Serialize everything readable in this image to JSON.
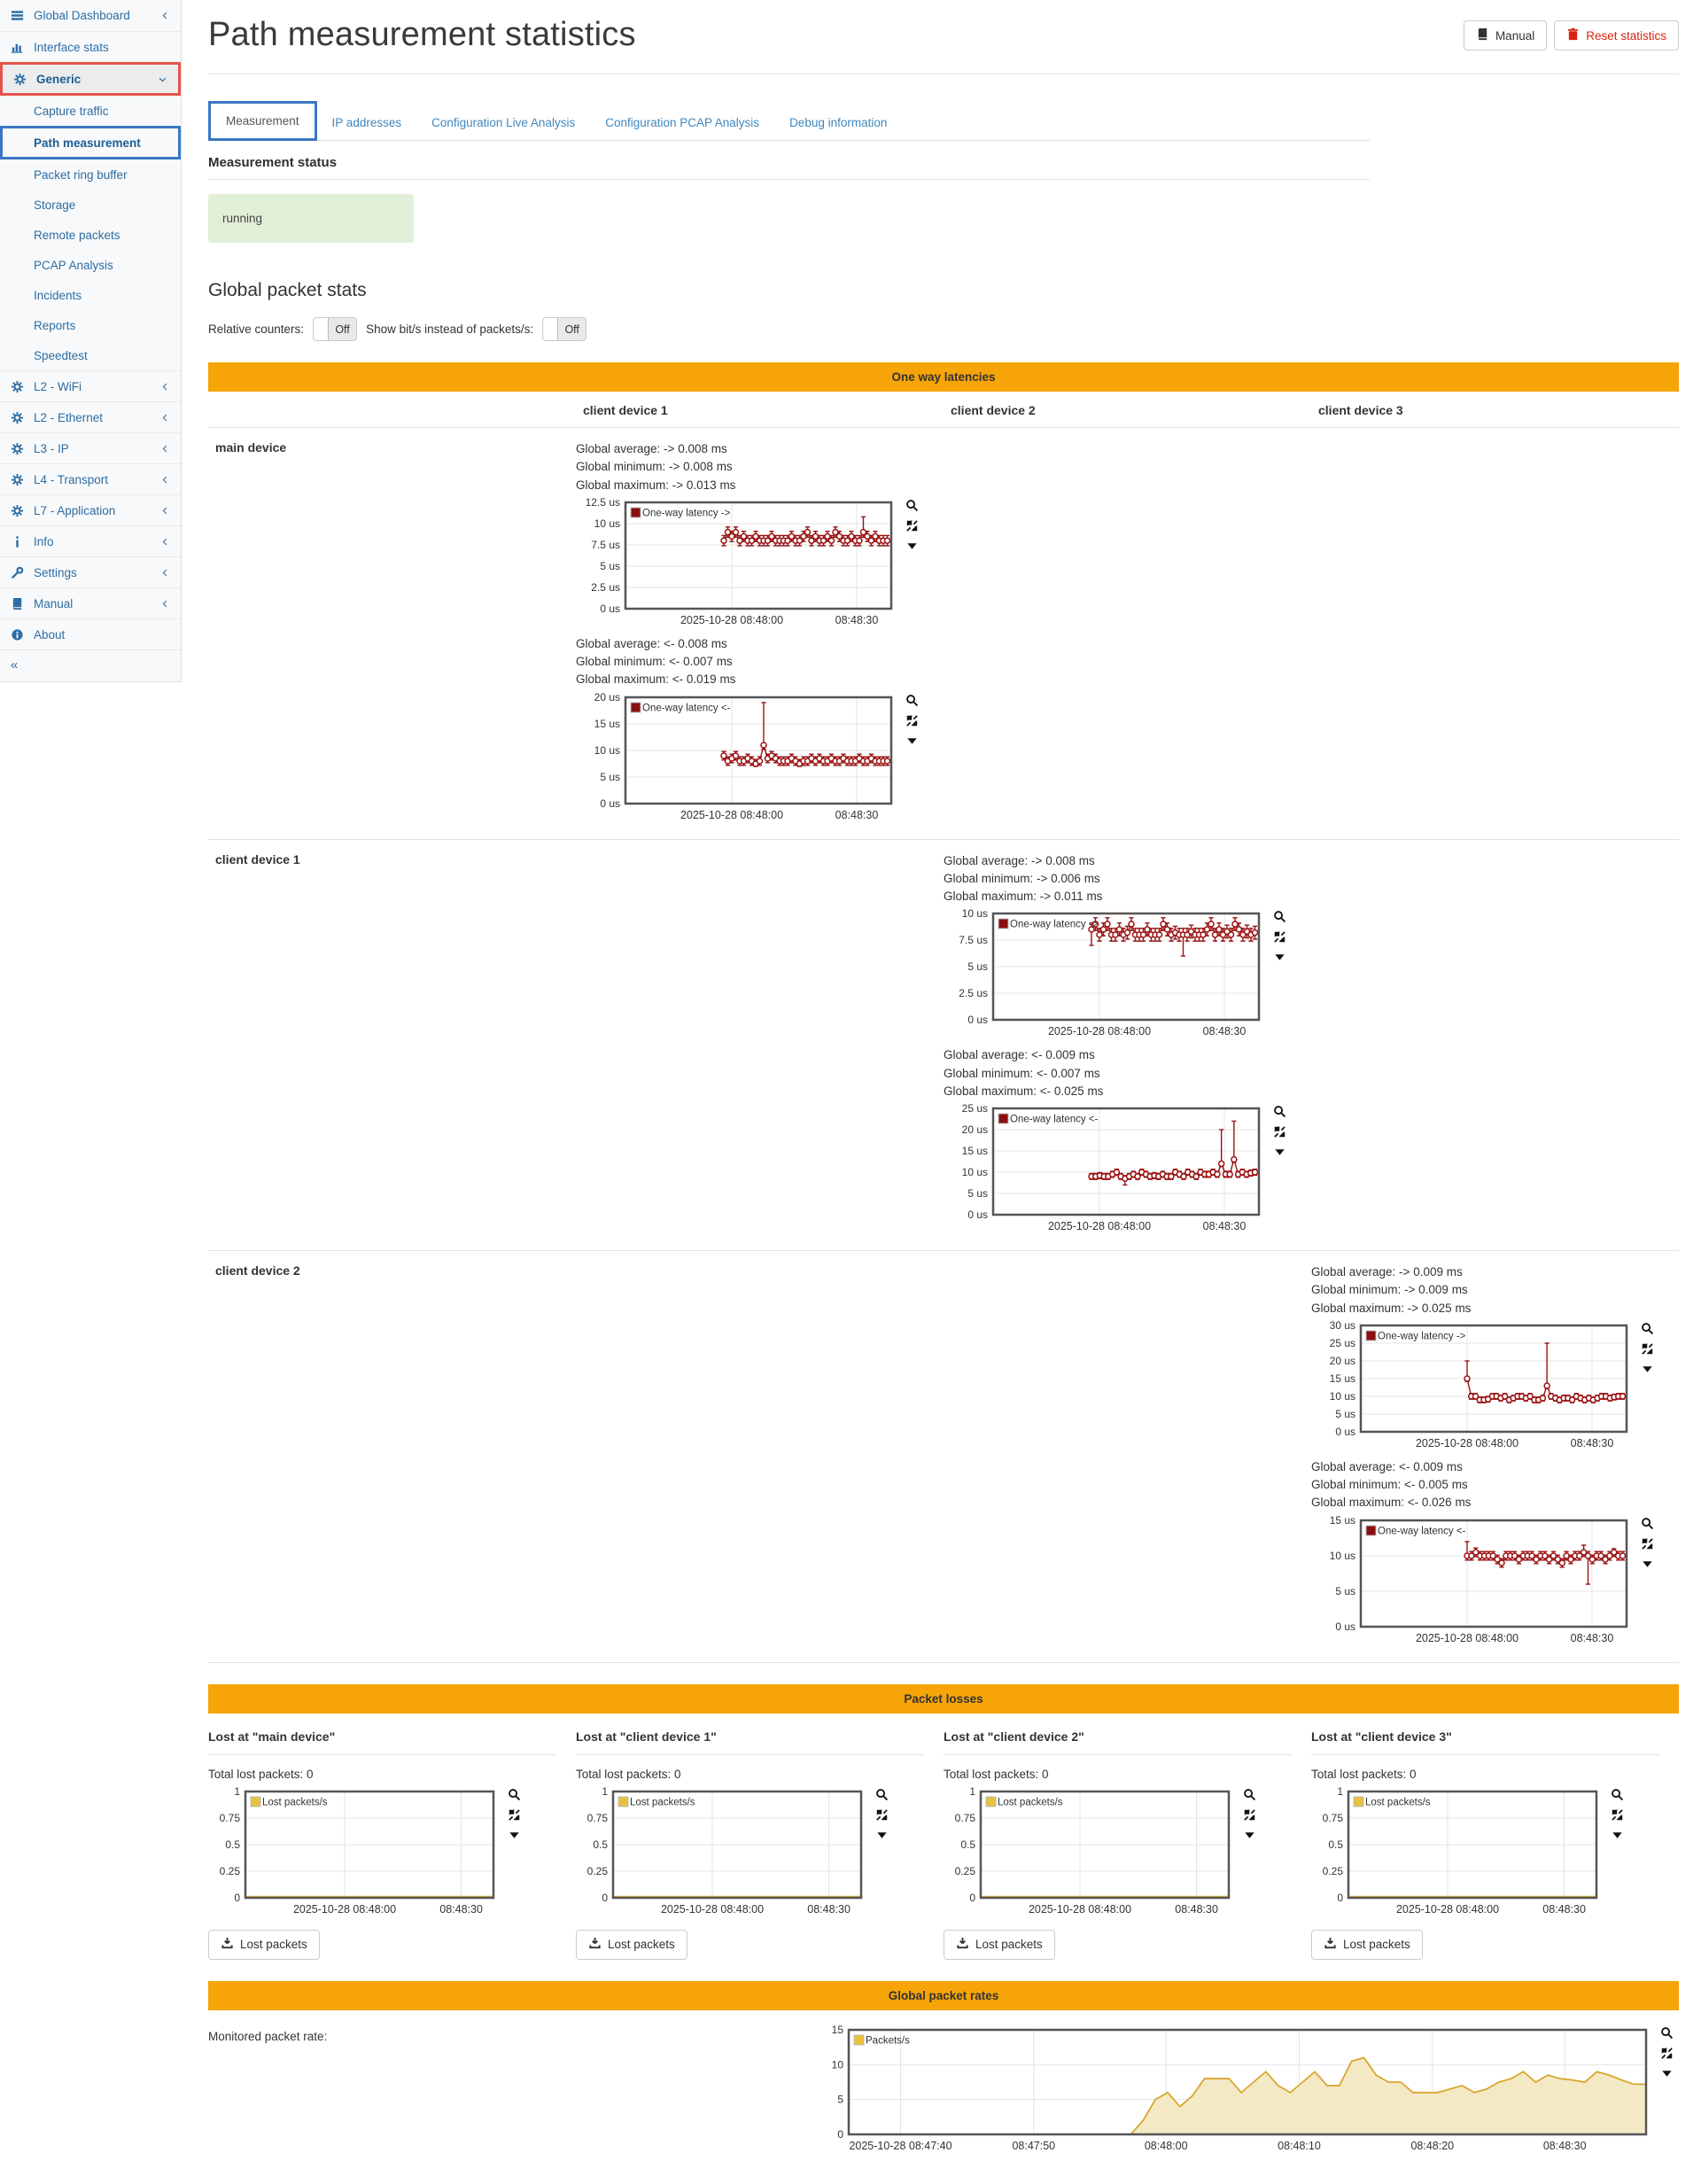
{
  "colors": {
    "accent_orange": "#f7a408",
    "chart_red": "#9b1111",
    "chart_gold": "#e2b13c",
    "gold_fill": "#f4e9c5",
    "status_green_bg": "#e2efd8",
    "sidebar_link": "#2c6da4",
    "highlight_red": "#e5534b",
    "highlight_blue": "#3b77c2",
    "danger_red": "#d9230f"
  },
  "sidebar": {
    "items": [
      {
        "label": "Global Dashboard",
        "icon": "dashboard",
        "chevron": "left",
        "type": "top"
      },
      {
        "label": "Interface stats",
        "icon": "chart",
        "chevron": "",
        "type": "top"
      },
      {
        "label": "Generic",
        "icon": "gear",
        "chevron": "down",
        "type": "top",
        "state": "hl-red"
      },
      {
        "label": "Capture traffic",
        "icon": "",
        "chevron": "",
        "type": "sub"
      },
      {
        "label": "Path measurement",
        "icon": "",
        "chevron": "",
        "type": "sub",
        "state": "hl-blue"
      },
      {
        "label": "Packet ring buffer",
        "icon": "",
        "chevron": "",
        "type": "sub"
      },
      {
        "label": "Storage",
        "icon": "",
        "chevron": "",
        "type": "sub"
      },
      {
        "label": "Remote packets",
        "icon": "",
        "chevron": "",
        "type": "sub"
      },
      {
        "label": "PCAP Analysis",
        "icon": "",
        "chevron": "",
        "type": "sub"
      },
      {
        "label": "Incidents",
        "icon": "",
        "chevron": "",
        "type": "sub"
      },
      {
        "label": "Reports",
        "icon": "",
        "chevron": "",
        "type": "sub"
      },
      {
        "label": "Speedtest",
        "icon": "",
        "chevron": "",
        "type": "sub"
      },
      {
        "label": "L2 - WiFi",
        "icon": "gear",
        "chevron": "left",
        "type": "top"
      },
      {
        "label": "L2 - Ethernet",
        "icon": "gear",
        "chevron": "left",
        "type": "top"
      },
      {
        "label": "L3 - IP",
        "icon": "gear",
        "chevron": "left",
        "type": "top"
      },
      {
        "label": "L4 - Transport",
        "icon": "gear",
        "chevron": "left",
        "type": "top"
      },
      {
        "label": "L7 - Application",
        "icon": "gear",
        "chevron": "left",
        "type": "top"
      },
      {
        "label": "Info",
        "icon": "info",
        "chevron": "left",
        "type": "top"
      },
      {
        "label": "Settings",
        "icon": "wrench",
        "chevron": "left",
        "type": "top"
      },
      {
        "label": "Manual",
        "icon": "book",
        "chevron": "left",
        "type": "top"
      },
      {
        "label": "About",
        "icon": "about",
        "chevron": "",
        "type": "top"
      },
      {
        "label": "«",
        "icon": "",
        "chevron": "",
        "type": "collapse"
      }
    ]
  },
  "header": {
    "title": "Path measurement statistics",
    "manual_button": "Manual",
    "reset_button": "Reset statistics"
  },
  "tabs": [
    {
      "label": "Measurement",
      "active": true
    },
    {
      "label": "IP addresses",
      "active": false
    },
    {
      "label": "Configuration Live Analysis",
      "active": false
    },
    {
      "label": "Configuration PCAP Analysis",
      "active": false
    },
    {
      "label": "Debug information",
      "active": false
    }
  ],
  "measurement_status": {
    "heading": "Measurement status",
    "status": "running"
  },
  "global_packet_stats": {
    "heading": "Global packet stats",
    "relative_counters_label": "Relative counters:",
    "relative_counters_value": "Off",
    "bits_label": "Show bit/s instead of packets/s:",
    "bits_value": "Off"
  },
  "one_way": {
    "banner": "One way latencies",
    "columns": [
      "client device 1",
      "client device 2",
      "client device 3"
    ],
    "rows": [
      {
        "label": "main device",
        "col": 0,
        "fwd": {
          "stats": [
            "Global average: -> 0.008 ms",
            "Global minimum: -> 0.008 ms",
            "Global maximum: -> 0.013 ms"
          ],
          "chart": {
            "type": "errorbar",
            "legend": "One-way latency ->",
            "color": "#9b1111",
            "ylim": [
              0,
              12.5
            ],
            "yticks": [
              0,
              2.5,
              5,
              7.5,
              10,
              12.5
            ],
            "ytick_suffix": " us",
            "xticks": [
              {
                "pos": 0.4,
                "label": "2025-10-28 08:48:00"
              },
              {
                "pos": 0.87,
                "label": "08:48:30"
              }
            ],
            "x_start": 0.37,
            "x_end": 0.985,
            "err": 0.6,
            "values": [
              8,
              9,
              8.5,
              9,
              8,
              8.5,
              8,
              8,
              8.5,
              8,
              8,
              8,
              8.5,
              8,
              8,
              8,
              8,
              8.5,
              8,
              8,
              8.5,
              9,
              8,
              8.5,
              8,
              8,
              8.5,
              8,
              9,
              8.5,
              8,
              8,
              8.5,
              8,
              8,
              9,
              8.5,
              8,
              8.5,
              8,
              8,
              8
            ],
            "spikes": [
              [
                35,
                10.8
              ]
            ],
            "dips": []
          }
        },
        "rev": {
          "stats": [
            "Global average: <- 0.008 ms",
            "Global minimum: <- 0.007 ms",
            "Global maximum: <- 0.019 ms"
          ],
          "chart": {
            "type": "errorbar",
            "legend": "One-way latency <-",
            "color": "#9b1111",
            "ylim": [
              0,
              20
            ],
            "yticks": [
              0,
              5,
              10,
              15,
              20
            ],
            "ytick_suffix": " us",
            "xticks": [
              {
                "pos": 0.4,
                "label": "2025-10-28 08:48:00"
              },
              {
                "pos": 0.87,
                "label": "08:48:30"
              }
            ],
            "x_start": 0.37,
            "x_end": 0.985,
            "err": 0.8,
            "values": [
              9,
              8,
              8.5,
              9,
              8,
              8,
              8.5,
              8,
              7.5,
              8,
              11,
              8.5,
              9,
              8.5,
              8,
              8,
              8,
              8.5,
              8,
              7.5,
              8,
              8,
              8.5,
              8,
              8.5,
              8,
              8,
              8.5,
              8,
              8,
              8.5,
              8,
              8,
              8,
              8.5,
              8,
              8,
              8.5,
              8,
              8,
              8,
              8
            ],
            "spikes": [
              [
                10,
                19
              ]
            ],
            "dips": [
              [
                8,
                7
              ],
              [
                19,
                7
              ]
            ]
          }
        }
      },
      {
        "label": "client device 1",
        "col": 1,
        "fwd": {
          "stats": [
            "Global average: -> 0.008 ms",
            "Global minimum: -> 0.006 ms",
            "Global maximum: -> 0.011 ms"
          ],
          "chart": {
            "type": "errorbar",
            "legend": "One-way latency ->",
            "color": "#9b1111",
            "ylim": [
              0,
              10
            ],
            "yticks": [
              0,
              2.5,
              5,
              7.5,
              10
            ],
            "ytick_suffix": " us",
            "xticks": [
              {
                "pos": 0.4,
                "label": "2025-10-28 08:48:00"
              },
              {
                "pos": 0.87,
                "label": "08:48:30"
              }
            ],
            "x_start": 0.37,
            "x_end": 0.985,
            "err": 0.6,
            "values": [
              8.5,
              9,
              8,
              8.5,
              9,
              8,
              8,
              8.5,
              8,
              8.2,
              9,
              8,
              8,
              8,
              8.5,
              8,
              8,
              8,
              9,
              8.5,
              8,
              8.2,
              8,
              8,
              8,
              8.3,
              8,
              8,
              8,
              8.5,
              9,
              8,
              8.5,
              8,
              8.3,
              8,
              9,
              8.5,
              8,
              8.3,
              8,
              8.2
            ],
            "spikes": [],
            "dips": [
              [
                0,
                7
              ],
              [
                23,
                6
              ]
            ]
          }
        },
        "rev": {
          "stats": [
            "Global average: <- 0.009 ms",
            "Global minimum: <- 0.007 ms",
            "Global maximum: <- 0.025 ms"
          ],
          "chart": {
            "type": "errorbar",
            "legend": "One-way latency <-",
            "color": "#9b1111",
            "ylim": [
              0,
              25
            ],
            "yticks": [
              0,
              5,
              10,
              15,
              20,
              25
            ],
            "ytick_suffix": " us",
            "xticks": [
              {
                "pos": 0.4,
                "label": "2025-10-28 08:48:00"
              },
              {
                "pos": 0.87,
                "label": "08:48:30"
              }
            ],
            "x_start": 0.37,
            "x_end": 0.985,
            "err": 0.7,
            "values": [
              9,
              9,
              9.2,
              9,
              9,
              9.5,
              10,
              9,
              8.5,
              9,
              9.5,
              9,
              10,
              9.5,
              9,
              9.2,
              9,
              9.5,
              9,
              9,
              10,
              9.5,
              9,
              10,
              9.5,
              9,
              10,
              9.5,
              9.5,
              10,
              9.5,
              12,
              9.5,
              9.5,
              13,
              9.5,
              10,
              9.5,
              9.8,
              10
            ],
            "spikes": [
              [
                31,
                20
              ],
              [
                34,
                22
              ]
            ],
            "dips": [
              [
                8,
                7
              ]
            ]
          }
        }
      },
      {
        "label": "client device 2",
        "col": 2,
        "fwd": {
          "stats": [
            "Global average: -> 0.009 ms",
            "Global minimum: -> 0.009 ms",
            "Global maximum: -> 0.025 ms"
          ],
          "chart": {
            "type": "errorbar",
            "legend": "One-way latency ->",
            "color": "#9b1111",
            "ylim": [
              0,
              30
            ],
            "yticks": [
              0,
              5,
              10,
              15,
              20,
              25,
              30
            ],
            "ytick_suffix": " us",
            "xticks": [
              {
                "pos": 0.4,
                "label": "2025-10-28 08:48:00"
              },
              {
                "pos": 0.87,
                "label": "08:48:30"
              }
            ],
            "x_start": 0.4,
            "x_end": 0.985,
            "err": 0.8,
            "values": [
              15,
              10,
              10,
              9,
              9,
              9.2,
              10,
              10,
              9.5,
              10,
              9,
              9.5,
              10,
              10,
              9.5,
              10,
              9,
              9,
              9.5,
              13,
              10,
              9.5,
              9,
              9.5,
              9.5,
              9,
              10,
              9.5,
              9,
              9.5,
              9,
              9.5,
              10,
              10,
              9.5,
              9.8,
              10,
              10
            ],
            "spikes": [
              [
                0,
                20
              ],
              [
                19,
                25
              ]
            ],
            "dips": []
          }
        },
        "rev": {
          "stats": [
            "Global average: <- 0.009 ms",
            "Global minimum: <- 0.005 ms",
            "Global maximum: <- 0.026 ms"
          ],
          "chart": {
            "type": "errorbar",
            "legend": "One-way latency <-",
            "color": "#9b1111",
            "ylim": [
              0,
              15
            ],
            "yticks": [
              0,
              5,
              10,
              15
            ],
            "ytick_suffix": " us",
            "xticks": [
              {
                "pos": 0.4,
                "label": "2025-10-28 08:48:00"
              },
              {
                "pos": 0.87,
                "label": "08:48:30"
              }
            ],
            "x_start": 0.4,
            "x_end": 0.985,
            "err": 0.6,
            "values": [
              10,
              10,
              10.5,
              10,
              10,
              10,
              10,
              9.5,
              9,
              10,
              10,
              10,
              9.5,
              10,
              10,
              10,
              9.5,
              10,
              10,
              9.5,
              10,
              9.5,
              9,
              10,
              9.5,
              10,
              10,
              10.5,
              10,
              9.5,
              10,
              10,
              9.5,
              10,
              10.5,
              10,
              10
            ],
            "spikes": [
              [
                0,
                12
              ],
              [
                27,
                11.5
              ],
              [
                34,
                11
              ]
            ],
            "dips": [
              [
                28,
                6
              ]
            ]
          }
        }
      }
    ]
  },
  "packet_losses": {
    "banner": "Packet losses",
    "chart": {
      "type": "line",
      "legend": "Lost packets/s",
      "color": "#e2b13c",
      "ylim": [
        0,
        1
      ],
      "yticks": [
        0,
        0.25,
        0.5,
        0.75,
        1
      ],
      "ytick_suffix": "",
      "xticks": [
        {
          "pos": 0.4,
          "label": "2025-10-28 08:48:00"
        },
        {
          "pos": 0.87,
          "label": "08:48:30"
        }
      ],
      "x_start": 0,
      "x_end": 1,
      "values": [
        0,
        0
      ]
    },
    "panels": [
      {
        "heading": "Lost at \"main device\"",
        "total": "Total lost packets: 0",
        "button": "Lost packets"
      },
      {
        "heading": "Lost at \"client device 1\"",
        "total": "Total lost packets: 0",
        "button": "Lost packets"
      },
      {
        "heading": "Lost at \"client device 2\"",
        "total": "Total lost packets: 0",
        "button": "Lost packets"
      },
      {
        "heading": "Lost at \"client device 3\"",
        "total": "Total lost packets: 0",
        "button": "Lost packets"
      }
    ]
  },
  "global_rates": {
    "banner": "Global packet rates",
    "label": "Monitored packet rate:",
    "chart": {
      "type": "area",
      "legend": "Packets/s",
      "color": "#d9a62e",
      "fill": "#f4e9c5",
      "ylim": [
        0,
        15
      ],
      "yticks": [
        0,
        5,
        10,
        15
      ],
      "ytick_suffix": "",
      "xticks": [
        {
          "pos": 0.065,
          "label": "2025-10-28 08:47:40"
        },
        {
          "pos": 0.232,
          "label": "08:47:50"
        },
        {
          "pos": 0.398,
          "label": "08:48:00"
        },
        {
          "pos": 0.565,
          "label": "08:48:10"
        },
        {
          "pos": 0.732,
          "label": "08:48:20"
        },
        {
          "pos": 0.898,
          "label": "08:48:30"
        }
      ],
      "x_start": 0,
      "x_end": 1,
      "values": [
        0,
        0,
        0,
        0,
        0,
        0,
        0,
        0,
        0,
        0,
        0,
        0,
        0,
        0,
        0,
        0,
        0,
        0,
        0,
        0,
        0,
        0,
        0,
        0,
        2,
        5,
        6,
        4,
        5.5,
        8,
        8,
        8,
        6,
        7.5,
        9,
        7,
        6,
        7.5,
        9,
        7,
        7,
        10.5,
        11,
        8.5,
        7.5,
        7.5,
        6,
        6,
        6,
        6.5,
        7,
        6,
        6.5,
        7.5,
        8,
        9,
        7.5,
        8.5,
        8,
        7.8,
        7.5,
        9,
        8.5,
        7.8,
        7.2,
        7.2
      ]
    }
  }
}
